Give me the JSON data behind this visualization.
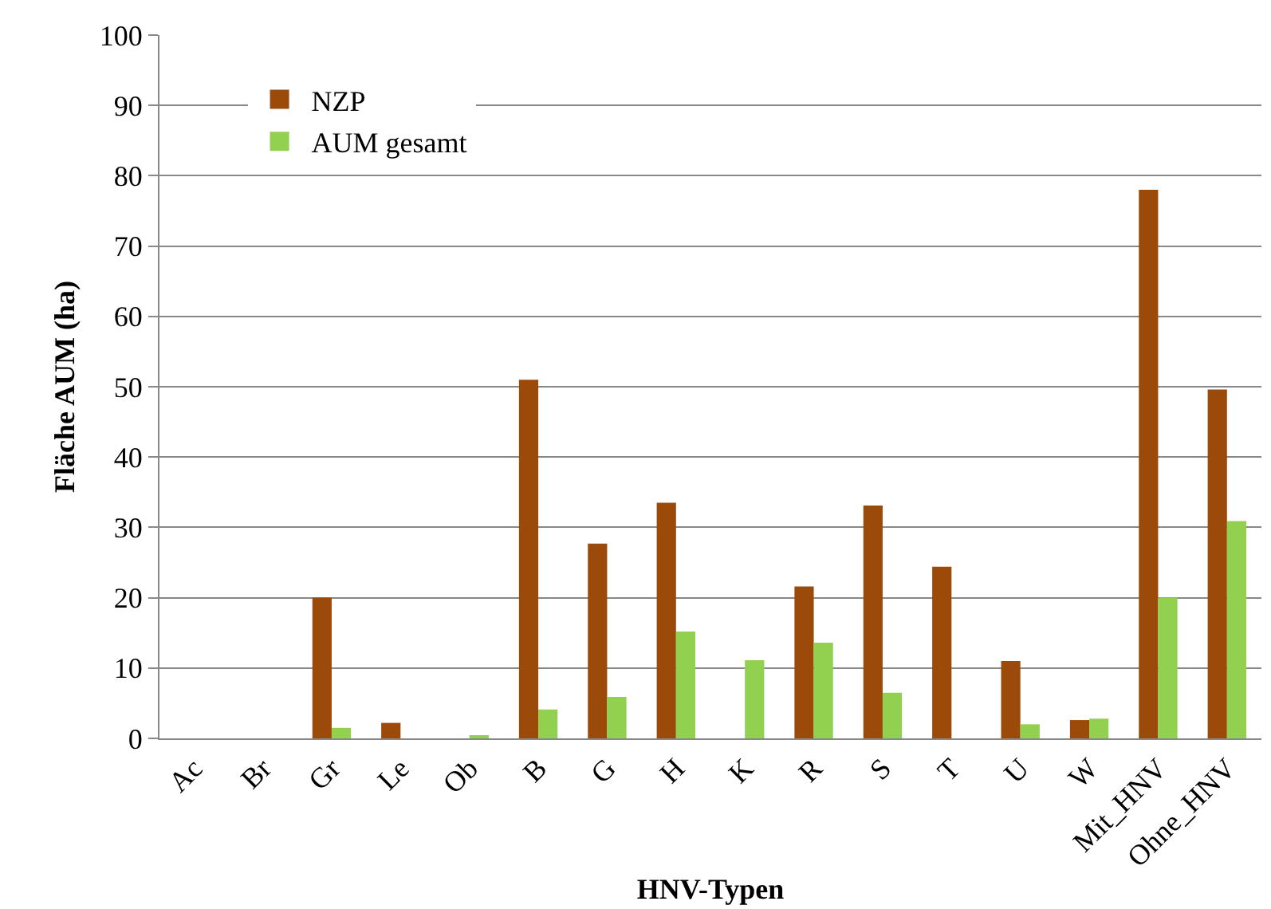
{
  "chart_data": {
    "type": "bar",
    "xlabel": "HNV-Typen",
    "ylabel": "Fläche AUM (ha)",
    "categories": [
      "Ac",
      "Br",
      "Gr",
      "Le",
      "Ob",
      "B",
      "G",
      "H",
      "K",
      "R",
      "S",
      "T",
      "U",
      "W",
      "Mit_HNV",
      "Ohne_HNV"
    ],
    "series": [
      {
        "name": "NZP",
        "color": "#9b4a0a",
        "values": [
          0,
          0,
          20,
          2.2,
          0,
          51,
          27.7,
          33.5,
          0,
          21.6,
          33.1,
          24.4,
          11,
          2.6,
          78,
          49.6
        ]
      },
      {
        "name": "AUM gesamt",
        "color": "#92d050",
        "values": [
          0,
          0,
          1.5,
          0,
          0.3,
          4.1,
          5.9,
          15.2,
          11.1,
          13.6,
          6.5,
          0,
          2,
          2.8,
          20,
          30.9
        ]
      }
    ],
    "ylim": [
      0,
      100
    ],
    "yticks": [
      0,
      10,
      20,
      30,
      40,
      50,
      60,
      70,
      80,
      90,
      100
    ],
    "grid": "y",
    "legend": "top left"
  }
}
